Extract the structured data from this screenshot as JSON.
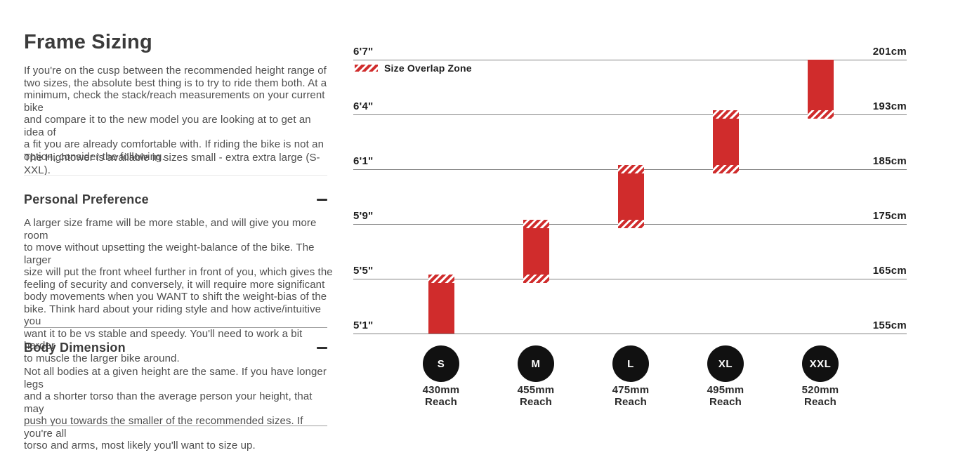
{
  "page": {
    "title": "Frame Sizing",
    "intro_para_1": "If you're on the cusp between the recommended height range of\ntwo sizes, the absolute best thing is to try to ride them both. At a\nminimum, check the stack/reach measurements on your current bike\nand compare it to the new model you are looking at to get an idea of\na fit you are already comfortable with. If riding the bike is not an\noption, consider the following.",
    "intro_para_2": "The Hightower is available in sizes small - extra extra large (S-XXL).",
    "sections": [
      {
        "heading": "Personal Preference",
        "toggle_state": "expanded",
        "body": "A larger size frame will be more stable, and will give you more room\nto move without upsetting the weight-balance of the bike. The larger\nsize will put the front wheel further in front of you, which gives the\nfeeling of security and conversely, it will require more significant\nbody movements when you WANT to shift the weight-bias of the\nbike. Think hard about your riding style and how active/intuitive you\nwant it to be vs stable and speedy. You'll need to work a bit harder\nto muscle the larger bike around."
      },
      {
        "heading": "Body Dimension",
        "toggle_state": "expanded",
        "body": "Not all bodies at a given height are the same. If you have longer legs\nand a shorter torso than the average person your height, that may\npush you towards the smaller of the recommended sizes. If you're all\ntorso and arms, most likely you'll want to size up."
      }
    ]
  },
  "chart_data": {
    "type": "bar",
    "subtype": "vertical-height-range-bars",
    "title": "",
    "legend": {
      "label": "Size Overlap Zone",
      "swatch": "red-diagonal-hatch",
      "position": "top-left"
    },
    "colors": {
      "bar_red": "#d02c2c",
      "badge_black": "#111111",
      "gridline_gray": "#828282"
    },
    "y_axis": {
      "left_unit": "feet-inches",
      "right_unit": "centimeters",
      "gridlines": [
        {
          "imperial": "6'7\"",
          "metric": "201cm"
        },
        {
          "imperial": "6'4\"",
          "metric": "193cm"
        },
        {
          "imperial": "6'1\"",
          "metric": "185cm"
        },
        {
          "imperial": "5'9\"",
          "metric": "175cm"
        },
        {
          "imperial": "5'5\"",
          "metric": "165cm"
        },
        {
          "imperial": "5'1\"",
          "metric": "155cm"
        }
      ]
    },
    "sizes": [
      {
        "label": "S",
        "reach": "430mm",
        "reach_word": "Reach",
        "height_min": "5'1\"",
        "height_max": "5'5\"",
        "overlap_top": true,
        "overlap_bottom": false
      },
      {
        "label": "M",
        "reach": "455mm",
        "reach_word": "Reach",
        "height_min": "5'5\"",
        "height_max": "5'9\"",
        "overlap_top": true,
        "overlap_bottom": true
      },
      {
        "label": "L",
        "reach": "475mm",
        "reach_word": "Reach",
        "height_min": "5'9\"",
        "height_max": "6'1\"",
        "overlap_top": true,
        "overlap_bottom": true
      },
      {
        "label": "XL",
        "reach": "495mm",
        "reach_word": "Reach",
        "height_min": "6'1\"",
        "height_max": "6'4\"",
        "overlap_top": true,
        "overlap_bottom": true
      },
      {
        "label": "XXL",
        "reach": "520mm",
        "reach_word": "Reach",
        "height_min": "6'4\"",
        "height_max": "6'7\"",
        "overlap_top": false,
        "overlap_bottom": true
      }
    ]
  }
}
